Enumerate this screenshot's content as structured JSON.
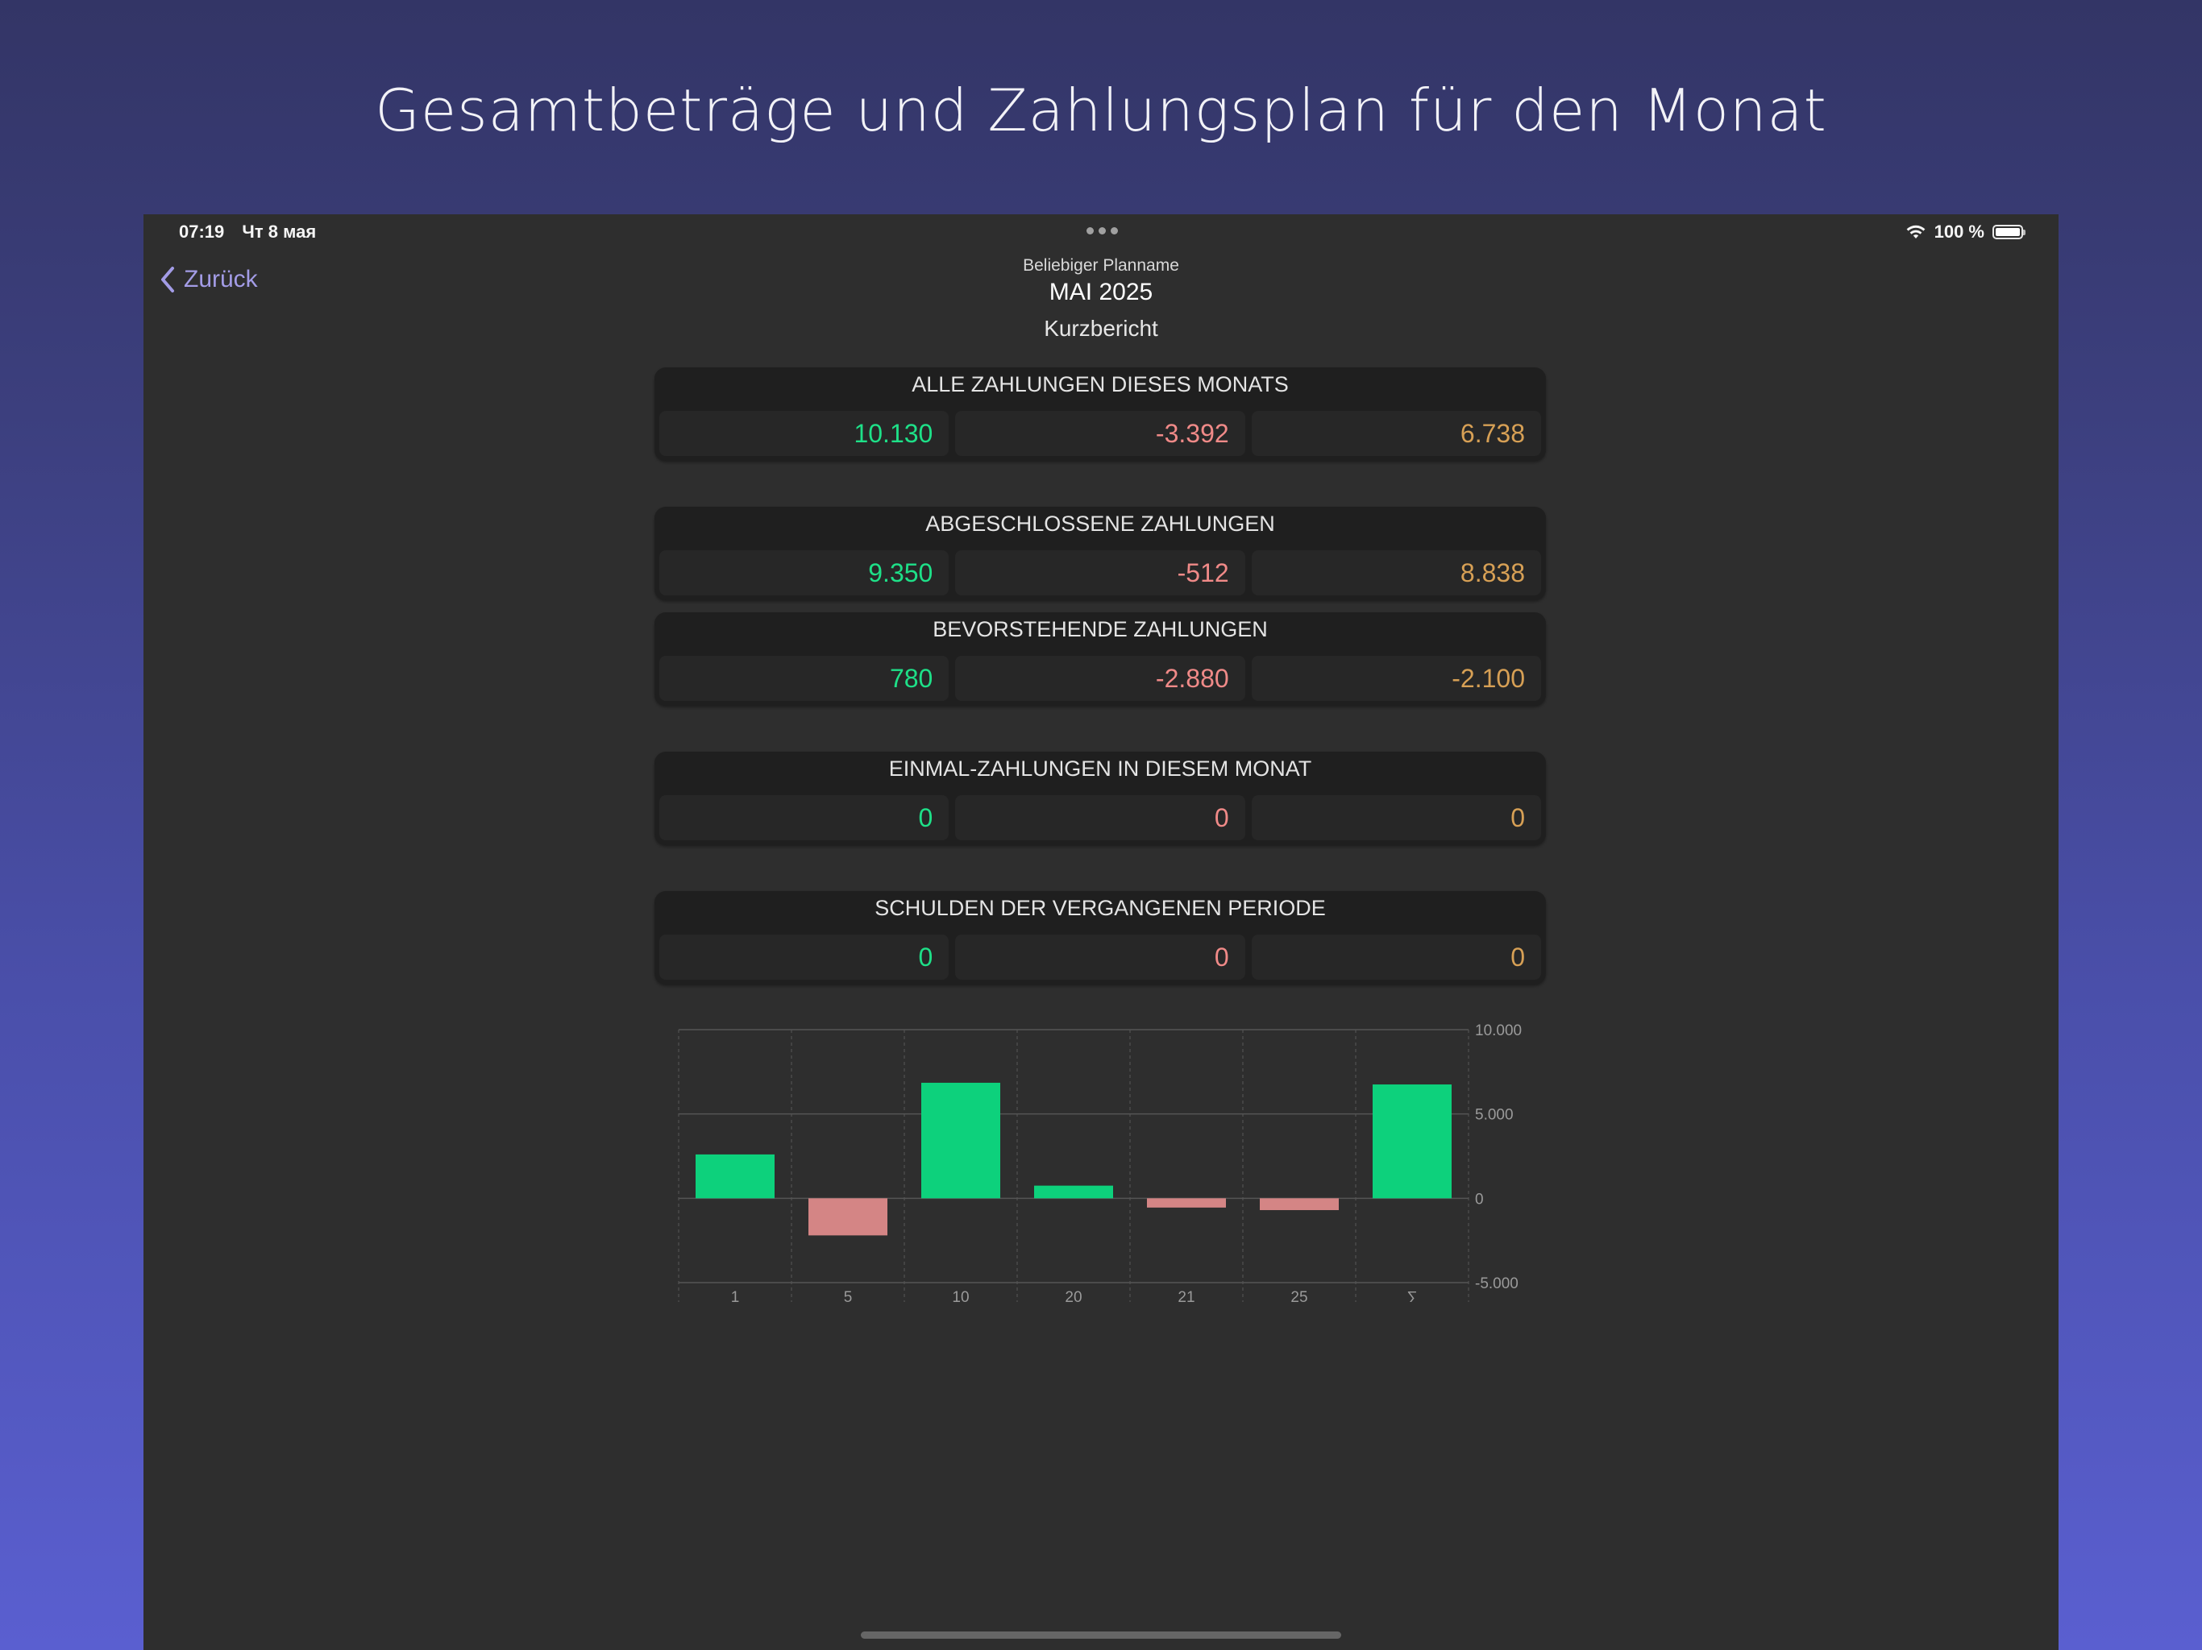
{
  "headline": "Gesamtbeträge und Zahlungsplan für den Monat",
  "status_bar": {
    "time": "07:19",
    "date": "Чт 8 мая",
    "battery": "100 %"
  },
  "nav": {
    "back_label": "Zurück",
    "plan_name": "Beliebiger Planname",
    "month": "MAI 2025",
    "report": "Kurzbericht"
  },
  "colors": {
    "income": "#1ee088",
    "expense": "#f08a88",
    "balance": "#d7a055",
    "bar_income": "#0dd17c",
    "bar_expense": "#d48585"
  },
  "cards": [
    {
      "title": "ALLE ZAHLUNGEN DIESES MONATS",
      "income": "10.130",
      "expense": "-3.392",
      "balance": "6.738"
    },
    {
      "title": "ABGESCHLOSSENE ZAHLUNGEN",
      "income": "9.350",
      "expense": "-512",
      "balance": "8.838"
    },
    {
      "title": "BEVORSTEHENDE ZAHLUNGEN",
      "income": "780",
      "expense": "-2.880",
      "balance": "-2.100"
    },
    {
      "title": "EINMAL-ZAHLUNGEN IN DIESEM MONAT",
      "income": "0",
      "expense": "0",
      "balance": "0"
    },
    {
      "title": "SCHULDEN DER VERGANGENEN PERIODE",
      "income": "0",
      "expense": "0",
      "balance": "0"
    }
  ],
  "chart_data": {
    "type": "bar",
    "categories": [
      "1",
      "5",
      "10",
      "20",
      "21",
      "25",
      "∑"
    ],
    "values": [
      2600,
      -2200,
      6850,
      750,
      -550,
      -700,
      6750
    ],
    "ylim": [
      -5000,
      10000
    ],
    "y_ticks": [
      10000,
      5000,
      0,
      -5000
    ],
    "y_tick_labels": [
      "10.000",
      "5.000",
      "0",
      "-5.000"
    ],
    "grid": true
  }
}
